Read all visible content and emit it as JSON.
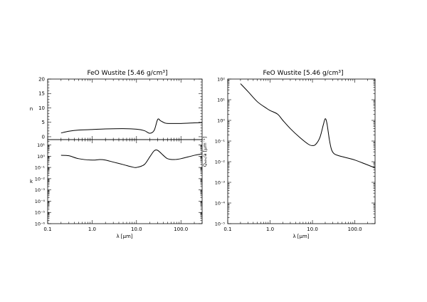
{
  "chart_data": [
    {
      "type": "line",
      "title": "FeO Wustite [5.46 g/cm³]",
      "xlabel": "",
      "ylabel": "n",
      "xscale": "log",
      "xlim": [
        0.1,
        300
      ],
      "ylim": [
        -1,
        20
      ],
      "yticks": [
        "0",
        "5",
        "10",
        "15",
        "20"
      ],
      "grid": false,
      "x": [
        0.2,
        0.3,
        0.5,
        1.0,
        2.0,
        5.0,
        10.0,
        15.0,
        20.0,
        25.0,
        30.0,
        35.0,
        45.0,
        60.0,
        100.0,
        200.0,
        300.0
      ],
      "values": [
        1.3,
        1.9,
        2.3,
        2.5,
        2.7,
        2.8,
        2.6,
        2.1,
        1.2,
        2.2,
        6.0,
        5.5,
        4.7,
        4.6,
        4.6,
        4.8,
        4.9
      ]
    },
    {
      "type": "line",
      "title": "",
      "xlabel": "λ [μm]",
      "ylabel": "k",
      "xscale": "log",
      "yscale": "log",
      "xlim": [
        0.1,
        300
      ],
      "ylim": [
        1e-06,
        30
      ],
      "xticks": [
        "0.1",
        "1.0",
        "10.0",
        "100.0"
      ],
      "yticks": [
        "10⁻⁶",
        "10⁻⁵",
        "10⁻⁴",
        "10⁻³",
        "10⁻²",
        "10⁻¹",
        "10⁰",
        "10¹"
      ],
      "grid": false,
      "x": [
        0.2,
        0.3,
        0.5,
        1.0,
        1.5,
        2.0,
        3.0,
        5.0,
        8.0,
        10.0,
        15.0,
        20.0,
        25.0,
        30.0,
        40.0,
        50.0,
        70.0,
        100.0,
        200.0,
        300.0
      ],
      "values": [
        1.2,
        1.1,
        0.6,
        0.45,
        0.5,
        0.45,
        0.3,
        0.18,
        0.11,
        0.1,
        0.18,
        0.9,
        3.0,
        3.3,
        1.2,
        0.6,
        0.5,
        0.6,
        1.2,
        1.6
      ]
    },
    {
      "type": "line",
      "title": "FeO Wustite [5.46 g/cm³]",
      "xlabel": "λ [μm]",
      "ylabel": "Qₐᵦₛ/a [μm⁻¹]",
      "xscale": "log",
      "yscale": "log",
      "xlim": [
        0.1,
        300
      ],
      "ylim": [
        1e-05,
        100
      ],
      "xticks": [
        "0.1",
        "1.0",
        "10.0",
        "100.0"
      ],
      "yticks": [
        "10⁻⁵",
        "10⁻⁴",
        "10⁻³",
        "10⁻²",
        "10⁻¹",
        "10⁰",
        "10¹",
        "10²"
      ],
      "grid": false,
      "x": [
        0.2,
        0.3,
        0.5,
        0.8,
        1.0,
        1.5,
        2.0,
        3.0,
        5.0,
        8.0,
        10.0,
        12.0,
        15.0,
        18.0,
        20.0,
        22.0,
        25.0,
        28.0,
        32.0,
        40.0,
        60.0,
        100.0,
        200.0,
        300.0
      ],
      "values": [
        60,
        25,
        8,
        4,
        3,
        2,
        1.0,
        0.4,
        0.15,
        0.07,
        0.06,
        0.07,
        0.15,
        0.6,
        1.2,
        0.7,
        0.12,
        0.04,
        0.025,
        0.02,
        0.016,
        0.012,
        0.007,
        0.005
      ]
    }
  ]
}
